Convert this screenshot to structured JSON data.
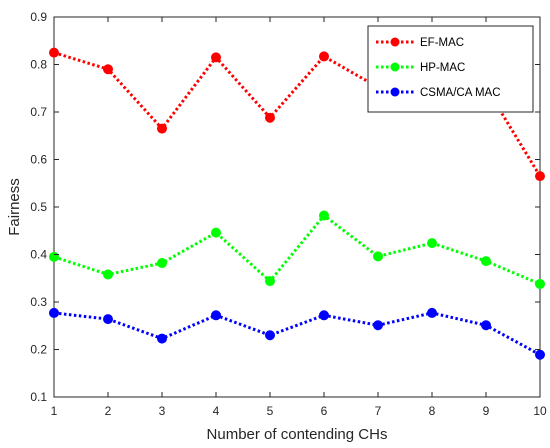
{
  "chart_data": {
    "type": "line",
    "title": "",
    "xlabel": "Number of contending CHs",
    "ylabel": "Fairness",
    "x": [
      1,
      2,
      3,
      4,
      5,
      6,
      7,
      8,
      9,
      10
    ],
    "xlim": [
      1,
      10
    ],
    "ylim": [
      0.1,
      0.9
    ],
    "xticks": [
      1,
      2,
      3,
      4,
      5,
      6,
      7,
      8,
      9,
      10
    ],
    "yticks": [
      0.1,
      0.2,
      0.3,
      0.4,
      0.5,
      0.6,
      0.7,
      0.8,
      0.9
    ],
    "grid": false,
    "legend_position": "top-right",
    "series": [
      {
        "name": "EF-MAC",
        "color": "#ff0000",
        "line_style": "dotted",
        "marker": "circle",
        "values": [
          0.825,
          0.79,
          0.665,
          0.815,
          0.688,
          0.817,
          0.752,
          0.803,
          0.752,
          0.565
        ]
      },
      {
        "name": "HP-MAC",
        "color": "#00ff00",
        "line_style": "dotted",
        "marker": "circle",
        "values": [
          0.395,
          0.358,
          0.382,
          0.446,
          0.344,
          0.482,
          0.396,
          0.424,
          0.386,
          0.338
        ]
      },
      {
        "name": "CSMA/CA MAC",
        "color": "#0000ff",
        "line_style": "dotted",
        "marker": "circle",
        "values": [
          0.277,
          0.264,
          0.223,
          0.272,
          0.23,
          0.272,
          0.251,
          0.277,
          0.251,
          0.189
        ]
      }
    ]
  }
}
